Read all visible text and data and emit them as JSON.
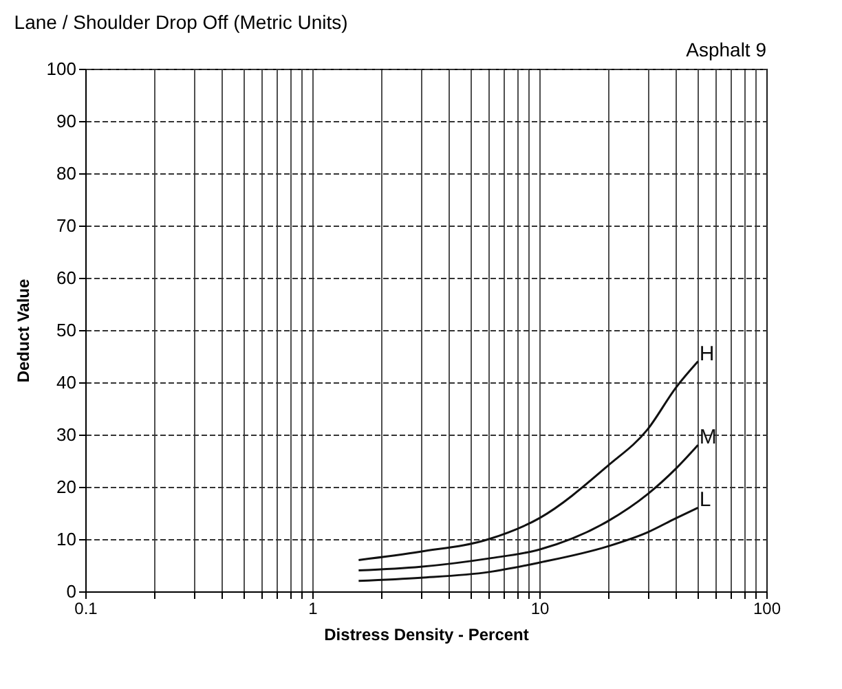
{
  "chart_data": {
    "type": "line",
    "title": "Lane / Shoulder Drop Off (Metric Units)",
    "annotations": [
      "Asphalt 9"
    ],
    "xlabel": "Distress Density - Percent",
    "ylabel": "Deduct Value",
    "log": "x",
    "xlim": [
      0.1,
      100
    ],
    "ylim": [
      0,
      100
    ],
    "xticks": [
      {
        "value": 0.1,
        "label": "0.1"
      },
      {
        "value": 0.2,
        "label": null
      },
      {
        "value": 0.3,
        "label": null
      },
      {
        "value": 0.4,
        "label": null
      },
      {
        "value": 0.5,
        "label": null
      },
      {
        "value": 0.6,
        "label": null
      },
      {
        "value": 0.7,
        "label": null
      },
      {
        "value": 0.8,
        "label": null
      },
      {
        "value": 0.9,
        "label": null
      },
      1,
      {
        "value": 2,
        "label": null
      },
      {
        "value": 3,
        "label": null
      },
      {
        "value": 4,
        "label": null
      },
      {
        "value": 5,
        "label": null
      },
      {
        "value": 6,
        "label": null
      },
      {
        "value": 7,
        "label": null
      },
      {
        "value": 8,
        "label": null
      },
      {
        "value": 9,
        "label": null
      },
      10,
      {
        "value": 20,
        "label": null
      },
      {
        "value": 30,
        "label": null
      },
      {
        "value": 40,
        "label": null
      },
      {
        "value": 50,
        "label": null
      },
      {
        "value": 60,
        "label": null
      },
      {
        "value": 70,
        "label": null
      },
      {
        "value": 80,
        "label": null
      },
      {
        "value": 90,
        "label": null
      },
      100
    ],
    "yticks": [
      0,
      10,
      20,
      30,
      40,
      50,
      60,
      70,
      80,
      90,
      100
    ],
    "grid": true,
    "marker": "none",
    "line_style": "solid",
    "x": [
      1.6,
      3,
      6,
      10,
      20,
      30,
      40,
      50
    ],
    "series": [
      {
        "name": "H",
        "color": "#111111",
        "values": [
          6,
          7.6,
          10,
          14,
          24,
          31,
          39,
          44
        ]
      },
      {
        "name": "M",
        "color": "#111111",
        "values": [
          4,
          4.7,
          6.3,
          8,
          13.4,
          18.6,
          23.5,
          28
        ]
      },
      {
        "name": "L",
        "color": "#111111",
        "values": [
          2,
          2.6,
          3.7,
          5.5,
          8.6,
          11.3,
          14,
          16
        ]
      }
    ]
  }
}
